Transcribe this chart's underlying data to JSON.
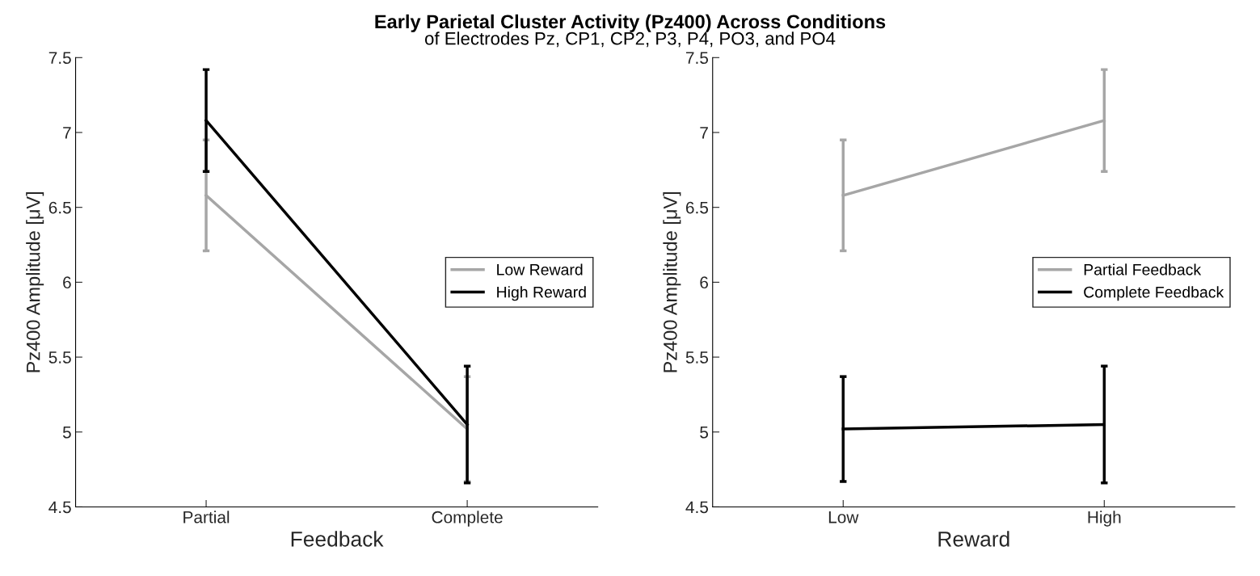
{
  "chart_data": [
    {
      "type": "line",
      "title": "Early Parietal Cluster Activity (Pz400) Across Conditions",
      "subtitle": "of Electrodes Pz, CP1, CP2, P3, P4, PO3, and PO4",
      "xlabel": "Feedback",
      "ylabel": "Pz400 Amplitude [μV]",
      "categories": [
        "Partial",
        "Complete"
      ],
      "ylim": [
        4.5,
        7.5
      ],
      "yticks": [
        4.5,
        5,
        5.5,
        6,
        6.5,
        7,
        7.5
      ],
      "grid": false,
      "legend": "right",
      "marker": "none",
      "line_style": "solid",
      "series": [
        {
          "name": "Low Reward",
          "color": "#a6a6a6",
          "values": [
            6.58,
            5.02
          ],
          "errors": [
            0.37,
            0.35
          ]
        },
        {
          "name": "High Reward",
          "color": "#000000",
          "values": [
            7.08,
            5.05
          ],
          "errors": [
            0.34,
            0.39
          ]
        }
      ]
    },
    {
      "type": "line",
      "xlabel": "Reward",
      "ylabel": "Pz400 Amplitude [μV]",
      "categories": [
        "Low",
        "High"
      ],
      "ylim": [
        4.5,
        7.5
      ],
      "yticks": [
        4.5,
        5,
        5.5,
        6,
        6.5,
        7,
        7.5
      ],
      "grid": false,
      "legend": "right",
      "marker": "none",
      "line_style": "solid",
      "series": [
        {
          "name": "Partial Feedback",
          "color": "#a6a6a6",
          "values": [
            6.58,
            7.08
          ],
          "errors": [
            0.37,
            0.34
          ]
        },
        {
          "name": "Complete Feedback",
          "color": "#000000",
          "values": [
            5.02,
            5.05
          ],
          "errors": [
            0.35,
            0.39
          ]
        }
      ]
    }
  ]
}
